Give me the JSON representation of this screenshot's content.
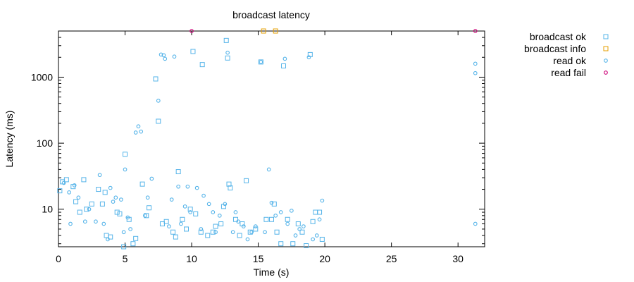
{
  "chart_data": {
    "type": "scatter",
    "title": "broadcast latency",
    "xlabel": "Time (s)",
    "ylabel": "Latency (ms)",
    "xlim": [
      0,
      32
    ],
    "ylim": [
      2.7,
      5000
    ],
    "y_scale": "log",
    "x_ticks": [
      0,
      5,
      10,
      15,
      20,
      25,
      30
    ],
    "y_ticks": [
      10,
      100,
      1000
    ],
    "grid": false,
    "legend_position": "top-right, outside plot",
    "series": [
      {
        "name": "broadcast ok",
        "marker": "square",
        "color": "#56b4e9",
        "points": [
          [
            0.1,
            19
          ],
          [
            0.3,
            26
          ],
          [
            0.6,
            28
          ],
          [
            1.1,
            22
          ],
          [
            1.3,
            13
          ],
          [
            1.6,
            9
          ],
          [
            1.9,
            28
          ],
          [
            2.1,
            10
          ],
          [
            2.5,
            12
          ],
          [
            3,
            20
          ],
          [
            3.3,
            12
          ],
          [
            3.5,
            18
          ],
          [
            3.6,
            4
          ],
          [
            3.9,
            3.8
          ],
          [
            4.4,
            9
          ],
          [
            4.6,
            8.5
          ],
          [
            4.9,
            2.7
          ],
          [
            5,
            68
          ],
          [
            5.3,
            7
          ],
          [
            5.6,
            3
          ],
          [
            5.8,
            3.6
          ],
          [
            6.3,
            24
          ],
          [
            6.6,
            8
          ],
          [
            6.8,
            10.5
          ],
          [
            7.3,
            940
          ],
          [
            7.5,
            215
          ],
          [
            7.8,
            6
          ],
          [
            8.1,
            6.5
          ],
          [
            8.6,
            4.5
          ],
          [
            8.8,
            3.8
          ],
          [
            9,
            37
          ],
          [
            9.3,
            7
          ],
          [
            9.6,
            5
          ],
          [
            9.9,
            10
          ],
          [
            10.1,
            2450
          ],
          [
            10.3,
            8.5
          ],
          [
            10.7,
            4.5
          ],
          [
            10.8,
            1550
          ],
          [
            11.2,
            4
          ],
          [
            11.6,
            4.5
          ],
          [
            11.8,
            5.5
          ],
          [
            12.2,
            6
          ],
          [
            12.4,
            11
          ],
          [
            12.6,
            3600
          ],
          [
            12.7,
            1950
          ],
          [
            12.8,
            24
          ],
          [
            12.9,
            21
          ],
          [
            13.3,
            7
          ],
          [
            13.6,
            4
          ],
          [
            13.8,
            6
          ],
          [
            14.1,
            27
          ],
          [
            14.4,
            4.5
          ],
          [
            14.8,
            5
          ],
          [
            15.2,
            1700
          ],
          [
            15.6,
            7
          ],
          [
            16,
            7
          ],
          [
            16.2,
            12
          ],
          [
            16.4,
            4.5
          ],
          [
            16.7,
            3
          ],
          [
            16.9,
            1480
          ],
          [
            17.2,
            7
          ],
          [
            17.6,
            3
          ],
          [
            18,
            6
          ],
          [
            18.3,
            4.5
          ],
          [
            18.6,
            2.8
          ],
          [
            18.9,
            2200
          ],
          [
            19.1,
            6.5
          ],
          [
            19.3,
            9
          ],
          [
            19.6,
            9
          ],
          [
            19.8,
            3.5
          ]
        ]
      },
      {
        "name": "broadcast info",
        "marker": "square",
        "color": "#e69f00",
        "points": [
          [
            15.4,
            5000
          ],
          [
            16.3,
            5000
          ]
        ]
      },
      {
        "name": "read ok",
        "marker": "circle",
        "color": "#56b4e9",
        "points": [
          [
            0.4,
            25
          ],
          [
            0.8,
            18
          ],
          [
            0.9,
            6
          ],
          [
            1.2,
            23
          ],
          [
            1.5,
            15
          ],
          [
            2,
            6.5
          ],
          [
            2.3,
            10
          ],
          [
            2.8,
            6.5
          ],
          [
            3.1,
            33
          ],
          [
            3.4,
            6
          ],
          [
            3.7,
            3.5
          ],
          [
            3.9,
            21
          ],
          [
            4.1,
            13
          ],
          [
            4.3,
            15
          ],
          [
            4.7,
            14
          ],
          [
            4.9,
            4.5
          ],
          [
            5,
            40
          ],
          [
            5.2,
            7.5
          ],
          [
            5.4,
            5
          ],
          [
            5.8,
            145
          ],
          [
            6,
            180
          ],
          [
            6.2,
            150
          ],
          [
            6.5,
            8
          ],
          [
            6.7,
            15
          ],
          [
            7,
            29
          ],
          [
            7.5,
            440
          ],
          [
            7.7,
            2200
          ],
          [
            7.9,
            2150
          ],
          [
            8,
            1900
          ],
          [
            8.3,
            5.5
          ],
          [
            8.5,
            14
          ],
          [
            8.7,
            2050
          ],
          [
            9,
            22
          ],
          [
            9.2,
            6
          ],
          [
            9.5,
            11
          ],
          [
            9.7,
            22
          ],
          [
            9.9,
            9
          ],
          [
            10.4,
            21
          ],
          [
            10.7,
            5
          ],
          [
            10.9,
            16
          ],
          [
            11.3,
            12
          ],
          [
            11.6,
            9
          ],
          [
            11.8,
            4.5
          ],
          [
            12.1,
            8
          ],
          [
            12.5,
            12
          ],
          [
            12.7,
            2350
          ],
          [
            13.1,
            4.5
          ],
          [
            13.3,
            9
          ],
          [
            13.5,
            6.5
          ],
          [
            13.9,
            5.5
          ],
          [
            14.2,
            3.5
          ],
          [
            14.5,
            4.5
          ],
          [
            14.8,
            5.5
          ],
          [
            15.2,
            1700
          ],
          [
            15.5,
            4.5
          ],
          [
            15.8,
            40
          ],
          [
            16,
            12.5
          ],
          [
            16.3,
            8
          ],
          [
            16.7,
            9
          ],
          [
            17,
            1900
          ],
          [
            17.2,
            6
          ],
          [
            17.5,
            9.5
          ],
          [
            17.8,
            4
          ],
          [
            18.1,
            5
          ],
          [
            18.4,
            5.5
          ],
          [
            18.8,
            2000
          ],
          [
            19.1,
            3.5
          ],
          [
            19.4,
            4
          ],
          [
            19.6,
            7
          ],
          [
            19.8,
            13.5
          ],
          [
            31.3,
            1600
          ],
          [
            31.3,
            1150
          ],
          [
            31.3,
            6
          ]
        ]
      },
      {
        "name": "read fail",
        "marker": "circle",
        "color": "#cc0077",
        "points": [
          [
            10,
            5000
          ],
          [
            31.3,
            5000
          ]
        ]
      }
    ]
  }
}
